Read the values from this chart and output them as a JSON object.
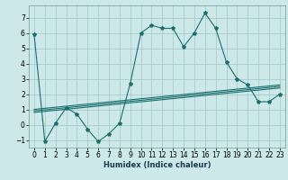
{
  "title": "",
  "xlabel": "Humidex (Indice chaleur)",
  "background_color": "#cce8e8",
  "grid_color": "#aacccc",
  "line_color": "#1a6e6e",
  "xlim": [
    -0.5,
    23.5
  ],
  "ylim": [
    -1.5,
    7.8
  ],
  "xticks": [
    0,
    1,
    2,
    3,
    4,
    5,
    6,
    7,
    8,
    9,
    10,
    11,
    12,
    13,
    14,
    15,
    16,
    17,
    18,
    19,
    20,
    21,
    22,
    23
  ],
  "yticks": [
    -1,
    0,
    1,
    2,
    3,
    4,
    5,
    6,
    7
  ],
  "line1_x": [
    0,
    1,
    2,
    3,
    4,
    5,
    6,
    7,
    8,
    9,
    10,
    11,
    12,
    13,
    14,
    15,
    16,
    17,
    18,
    19,
    20,
    21,
    22,
    23
  ],
  "line1_y": [
    5.9,
    -1.1,
    0.1,
    1.1,
    0.7,
    -0.3,
    -1.1,
    -0.6,
    0.1,
    2.7,
    6.0,
    6.5,
    6.3,
    6.3,
    5.1,
    6.0,
    7.3,
    6.3,
    4.1,
    3.0,
    2.6,
    1.5,
    1.5,
    2.0
  ],
  "line2_x": [
    0,
    23
  ],
  "line2_y": [
    0.8,
    2.4
  ],
  "line3_x": [
    0,
    23
  ],
  "line3_y": [
    0.9,
    2.5
  ],
  "line4_x": [
    0,
    23
  ],
  "line4_y": [
    1.0,
    2.6
  ],
  "xlabel_fontsize": 6,
  "tick_fontsize": 5.5
}
